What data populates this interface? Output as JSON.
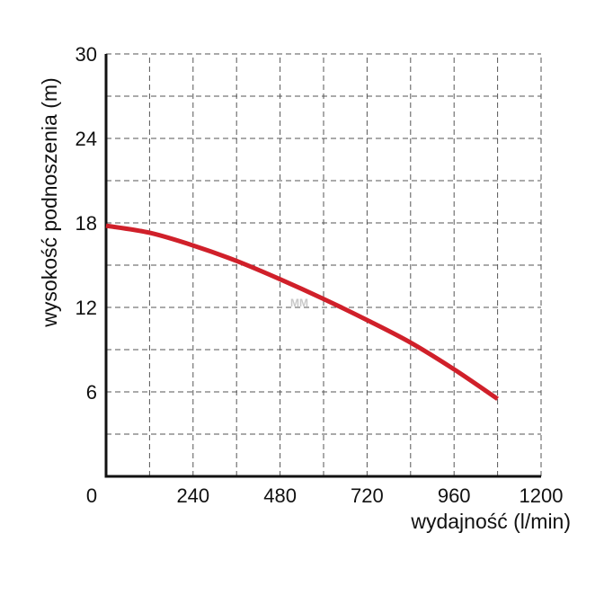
{
  "chart_data": {
    "type": "line",
    "title": "",
    "xlabel": "wydajność (l/min)",
    "ylabel": "wysokość podnoszenia (m)",
    "xlim": [
      0,
      1200
    ],
    "ylim": [
      0,
      30
    ],
    "x_ticks": [
      0,
      240,
      480,
      720,
      960,
      1200
    ],
    "x_tick_labels": [
      "0",
      "240",
      "480",
      "720",
      "960",
      "1200"
    ],
    "y_ticks": [
      6,
      12,
      18,
      24,
      30
    ],
    "y_tick_labels": [
      "6",
      "12",
      "18",
      "24",
      "30"
    ],
    "x_grid": [
      120,
      240,
      360,
      480,
      600,
      720,
      840,
      960,
      1080,
      1200
    ],
    "y_grid": [
      3,
      6,
      9,
      12,
      15,
      18,
      21,
      24,
      27,
      30
    ],
    "grid": true,
    "grid_style": "dashed",
    "legend": "none",
    "watermark": "MM",
    "series": [
      {
        "color": "#d0202a",
        "x": [
          0,
          120,
          240,
          360,
          480,
          600,
          720,
          840,
          960,
          1080
        ],
        "y": [
          17.8,
          17.3,
          16.4,
          15.3,
          14.0,
          12.6,
          11.1,
          9.5,
          7.6,
          5.5
        ]
      }
    ]
  }
}
